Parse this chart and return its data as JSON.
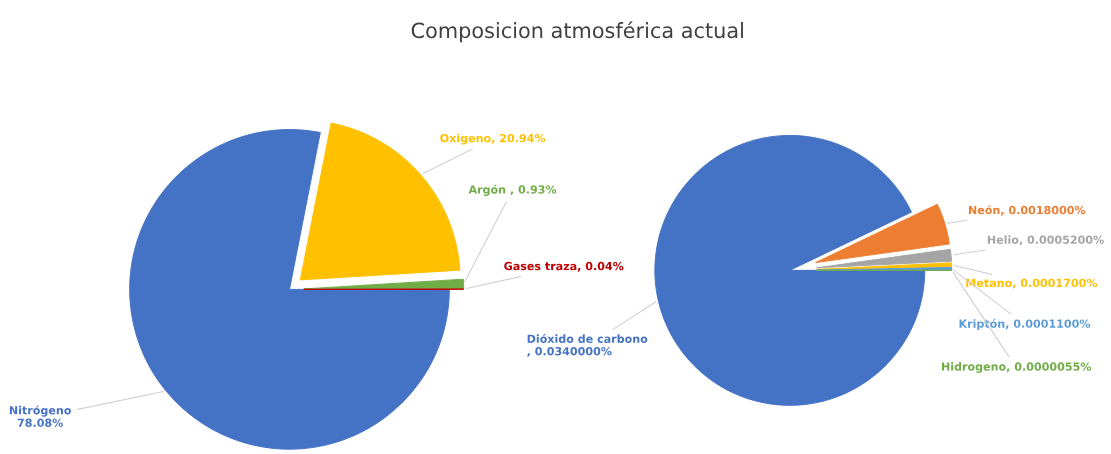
{
  "chart_data": [
    {
      "type": "pie",
      "title": "Composicion atmosférica actual",
      "categories": [
        "Nitrógeno",
        "Oxigeno",
        "Argón",
        "Gases traza"
      ],
      "values": [
        78.08,
        20.94,
        0.93,
        0.04
      ],
      "value_labels": [
        "78.08%",
        "20.94%",
        "0.93%",
        "0.04%"
      ],
      "colors": [
        "#4472c4",
        "#ffc000",
        "#70ad47",
        "#c00000"
      ]
    },
    {
      "type": "pie",
      "categories": [
        "Dióxido de carbono",
        "Neón",
        "Helio",
        "Metano",
        "Kriptón",
        "Hidrogeno"
      ],
      "values": [
        0.034,
        0.0018,
        0.00052,
        0.00017,
        0.00011,
        5.5e-06
      ],
      "value_labels": [
        ", 0.0340000%",
        "0.0018000%",
        "0.0005200%",
        "0.0001700%",
        "0.0001100%",
        "0.0000055%"
      ],
      "colors": [
        "#4472c4",
        "#ed7d31",
        "#a5a5a5",
        "#ffc000",
        "#5b9bd5",
        "#70ad47"
      ]
    }
  ]
}
